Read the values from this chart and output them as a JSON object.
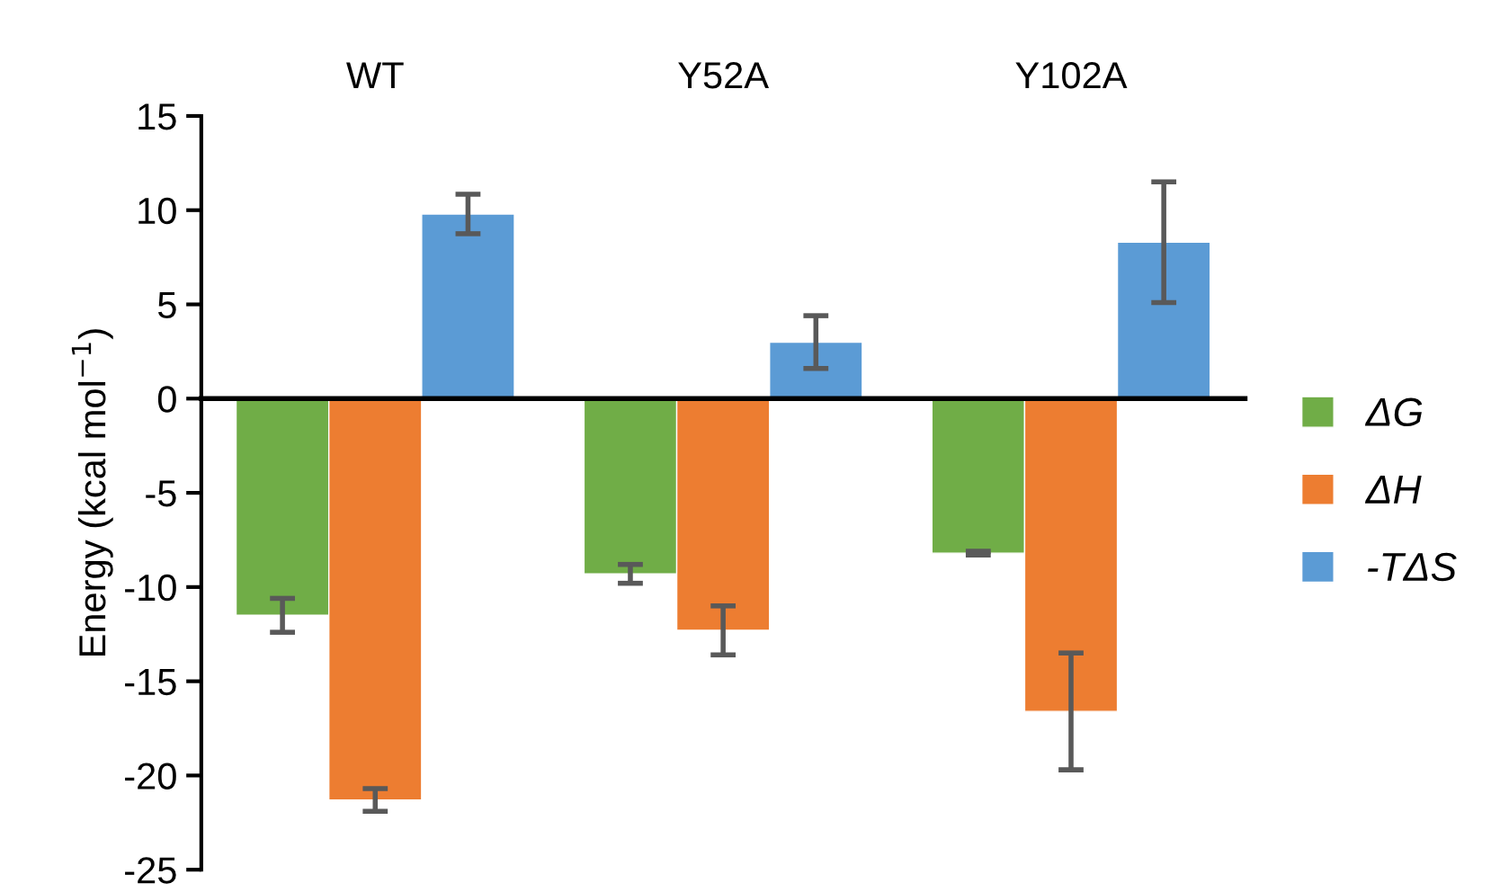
{
  "chart_data": {
    "type": "bar",
    "ylabel": "Energy (kcal mol$^{−1}$)",
    "categories": [
      "WT",
      "Y52A",
      "Y102A"
    ],
    "series": [
      {
        "name": "ΔG",
        "color": "#70ad47",
        "values": [
          -11.5,
          -9.3,
          -8.2
        ],
        "errors": [
          0.9,
          0.5,
          0.1
        ]
      },
      {
        "name": "ΔH",
        "color": "#ed7d31",
        "values": [
          -21.3,
          -12.3,
          -16.6
        ],
        "errors": [
          0.6,
          1.3,
          3.1
        ]
      },
      {
        "name": "-TΔS",
        "color": "#5b9bd5",
        "values": [
          9.8,
          3.0,
          8.3
        ],
        "errors": [
          1.05,
          1.4,
          3.2
        ]
      }
    ],
    "ylim": [
      -25,
      15
    ],
    "yticks": [
      -25,
      -20,
      -15,
      -10,
      -5,
      0,
      5,
      10,
      15
    ],
    "legend": "right"
  }
}
